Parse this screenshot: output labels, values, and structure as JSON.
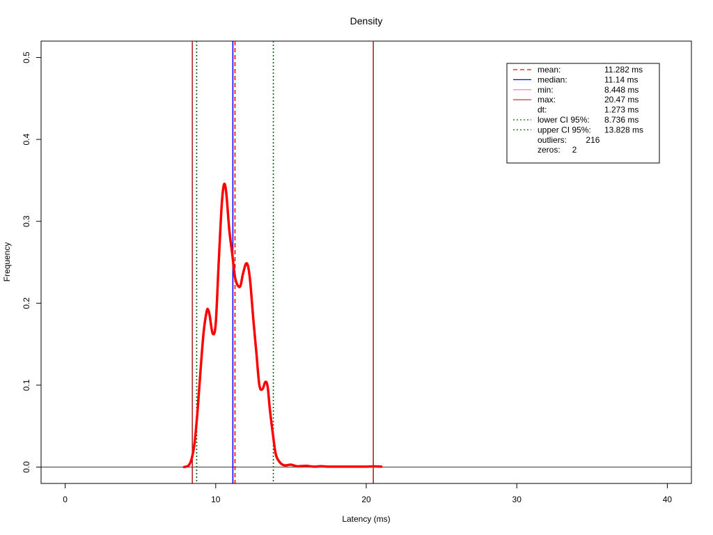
{
  "chart_data": {
    "type": "line",
    "title": "Density",
    "xlabel": "Latency (ms)",
    "ylabel": "Frequency",
    "xlim": [
      -1.6,
      41.6
    ],
    "ylim": [
      -0.02,
      0.52
    ],
    "x_ticks": [
      0,
      10,
      20,
      30,
      40
    ],
    "x_tick_labels": [
      "0",
      "10",
      "20",
      "30",
      "40"
    ],
    "y_ticks": [
      0.0,
      0.1,
      0.2,
      0.3,
      0.4,
      0.5
    ],
    "y_tick_labels": [
      "0.0",
      "0.1",
      "0.2",
      "0.3",
      "0.4",
      "0.5"
    ],
    "baseline": 0,
    "density": {
      "color": "#ff0000",
      "x": [
        7.9,
        8.2,
        8.4,
        8.6,
        8.8,
        9.0,
        9.2,
        9.4,
        9.5,
        9.6,
        9.8,
        10.0,
        10.2,
        10.4,
        10.55,
        10.7,
        10.9,
        11.1,
        11.3,
        11.6,
        11.8,
        12.0,
        12.15,
        12.3,
        12.5,
        12.7,
        12.9,
        13.1,
        13.3,
        13.45,
        13.6,
        13.8,
        14.0,
        14.3,
        14.6,
        15.0,
        15.4,
        16.0,
        16.5,
        17.0,
        17.5,
        18.0,
        19.0,
        20.0,
        20.5,
        21.0
      ],
      "y": [
        0.0,
        0.002,
        0.01,
        0.03,
        0.07,
        0.12,
        0.165,
        0.19,
        0.192,
        0.185,
        0.163,
        0.175,
        0.25,
        0.32,
        0.345,
        0.335,
        0.29,
        0.26,
        0.23,
        0.22,
        0.235,
        0.248,
        0.245,
        0.225,
        0.18,
        0.14,
        0.1,
        0.095,
        0.104,
        0.098,
        0.07,
        0.04,
        0.015,
        0.005,
        0.002,
        0.003,
        0.001,
        0.0015,
        0.0005,
        0.001,
        0.0005,
        0.0005,
        0.0005,
        0.0005,
        0.0008,
        0.0005
      ]
    },
    "vlines": [
      {
        "name": "mean",
        "x": 11.282,
        "color": "#ff0000",
        "style": "dashed"
      },
      {
        "name": "median",
        "x": 11.14,
        "color": "#0000ff",
        "style": "solid"
      },
      {
        "name": "min",
        "x": 8.448,
        "color": "#b22222",
        "style": "solid"
      },
      {
        "name": "max",
        "x": 20.47,
        "color": "#b22222",
        "style": "solid"
      },
      {
        "name": "lower CI 95%",
        "x": 8.736,
        "color": "#006400",
        "style": "dotted"
      },
      {
        "name": "upper CI 95%",
        "x": 13.828,
        "color": "#006400",
        "style": "dotted"
      }
    ],
    "legend": {
      "position": "top-right",
      "entries": [
        {
          "line": "dashed",
          "color": "#ff0000",
          "label": "mean:",
          "value": "11.282 ms"
        },
        {
          "line": "solid",
          "color": "#0000ff",
          "label": "median:",
          "value": "11.14 ms"
        },
        {
          "line": "solid",
          "color": "#ff69b4",
          "label": "min:",
          "value": "8.448 ms"
        },
        {
          "line": "solid",
          "color": "#b22222",
          "label": "max:",
          "value": "20.47 ms"
        },
        {
          "line": "none",
          "color": "",
          "label": "dt:",
          "value": "1.273 ms"
        },
        {
          "line": "dotted",
          "color": "#006400",
          "label": "lower CI 95%:",
          "value": "8.736 ms"
        },
        {
          "line": "dotted",
          "color": "#006400",
          "label": "upper CI 95%:",
          "value": "13.828 ms"
        },
        {
          "line": "none",
          "color": "",
          "label": "outliers:",
          "value": "216"
        },
        {
          "line": "none",
          "color": "",
          "label": "zeros:",
          "value": "2"
        }
      ]
    }
  }
}
